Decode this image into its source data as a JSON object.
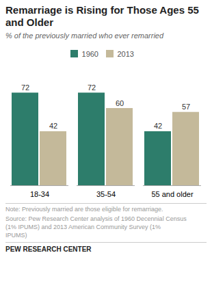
{
  "chart_data": {
    "type": "bar",
    "title": "Remarriage is Rising for Those Ages 55\nand Older",
    "subtitle": "% of the previously married who ever remarried",
    "categories": [
      "18-34",
      "35-54",
      "55 and older"
    ],
    "series": [
      {
        "name": "1960",
        "color": "#2d7d6b",
        "values": [
          72,
          72,
          42
        ]
      },
      {
        "name": "2013",
        "color": "#C4B99A",
        "values": [
          42,
          60,
          57
        ]
      }
    ],
    "ylim": [
      0,
      85
    ],
    "data_labels": true,
    "tick_labels": "x",
    "grid": false,
    "legend": "top",
    "annotations": [
      "Note: Previously married are those eligible for remarriage.",
      "Source: Pew Research Center analysis of 1960 Decennial Census\n(1% IPUMS)  and 2013 American Community Survey (1%\nIPUMS)",
      "PEW RESEARCH CENTER"
    ]
  }
}
